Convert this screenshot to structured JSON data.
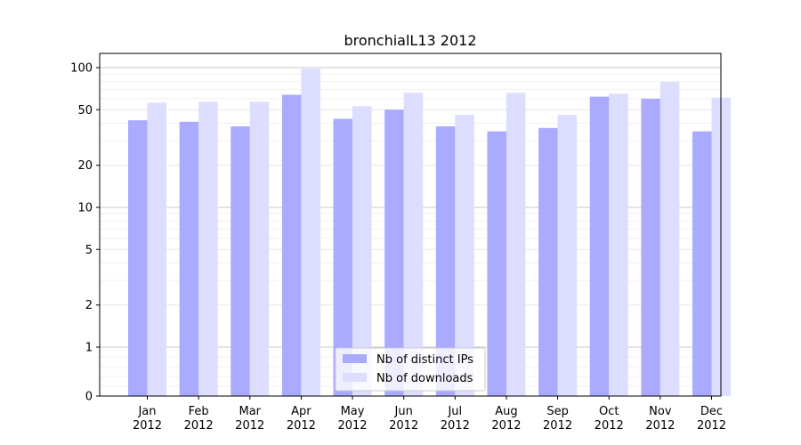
{
  "chart_data": {
    "type": "bar",
    "title": "bronchialL13 2012",
    "xlabel": "",
    "ylabel": "",
    "y_scale": "symlog",
    "ylim": [
      0,
      130
    ],
    "yticks": [
      0,
      1,
      2,
      5,
      10,
      20,
      50,
      100
    ],
    "ytick_labels": [
      "0",
      "1",
      "2",
      "5",
      "10",
      "20",
      "50",
      "100"
    ],
    "grid": true,
    "legend_position": "bottom-center",
    "categories": [
      [
        "Jan",
        "2012"
      ],
      [
        "Feb",
        "2012"
      ],
      [
        "Mar",
        "2012"
      ],
      [
        "Apr",
        "2012"
      ],
      [
        "May",
        "2012"
      ],
      [
        "Jun",
        "2012"
      ],
      [
        "Jul",
        "2012"
      ],
      [
        "Aug",
        "2012"
      ],
      [
        "Sep",
        "2012"
      ],
      [
        "Oct",
        "2012"
      ],
      [
        "Nov",
        "2012"
      ],
      [
        "Dec",
        "2012"
      ]
    ],
    "series": [
      {
        "name": "Nb of distinct IPs",
        "color": "#aaaaff",
        "values": [
          42,
          41,
          38,
          64,
          43,
          50,
          38,
          35,
          37,
          62,
          60,
          35
        ]
      },
      {
        "name": "Nb of downloads",
        "color": "#ddddff",
        "values": [
          56,
          57,
          57,
          98,
          53,
          66,
          46,
          66,
          46,
          65,
          79,
          61
        ]
      }
    ]
  }
}
